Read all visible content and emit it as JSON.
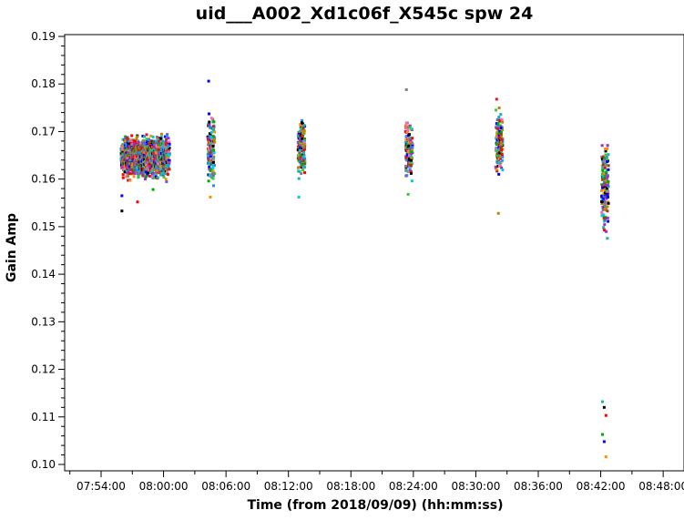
{
  "chart_data": {
    "type": "scatter",
    "title": "uid___A002_Xd1c06f_X545c spw 24",
    "xlabel": "Time (from 2018/09/09) (hh:mm:ss)",
    "ylabel": "Gain Amp",
    "xlim": [
      "07:50:30",
      "08:50:00"
    ],
    "ylim": [
      0.1,
      0.19
    ],
    "x_ticks": [
      "07:54:00",
      "08:00:00",
      "08:06:00",
      "08:12:00",
      "08:18:00",
      "08:24:00",
      "08:30:00",
      "08:36:00",
      "08:42:00",
      "08:48:00"
    ],
    "y_ticks": [
      "0.10",
      "0.11",
      "0.12",
      "0.13",
      "0.14",
      "0.15",
      "0.16",
      "0.17",
      "0.18",
      "0.19"
    ],
    "grid": false,
    "legend": "none",
    "scans": [
      {
        "time_start": "07:56:00",
        "time_end": "08:00:30",
        "y_min": 0.159,
        "y_max": 0.17,
        "outliers": [
          0.1533,
          0.1552,
          0.1578,
          0.1565
        ]
      },
      {
        "time_start": "08:04:20",
        "time_end": "08:04:50",
        "y_min": 0.157,
        "y_max": 0.176,
        "outliers": [
          0.1806,
          0.1562
        ]
      },
      {
        "time_start": "08:13:00",
        "time_end": "08:13:30",
        "y_min": 0.158,
        "y_max": 0.175,
        "outliers": [
          0.1562
        ]
      },
      {
        "time_start": "08:23:20",
        "time_end": "08:23:50",
        "y_min": 0.158,
        "y_max": 0.175,
        "outliers": [
          0.1788,
          0.1568
        ]
      },
      {
        "time_start": "08:32:00",
        "time_end": "08:32:30",
        "y_min": 0.159,
        "y_max": 0.176,
        "outliers": [
          0.1768,
          0.1528
        ]
      },
      {
        "time_start": "08:42:10",
        "time_end": "08:42:40",
        "y_min": 0.145,
        "y_max": 0.172,
        "outliers": [
          0.1132,
          0.112,
          0.1103,
          0.1063,
          0.1048,
          0.1016
        ]
      }
    ],
    "colors": [
      "#000000",
      "#ff0000",
      "#00aa00",
      "#0000ff",
      "#ff8c00",
      "#9932cc",
      "#00ced1",
      "#ff69b4",
      "#8b4513",
      "#808080",
      "#32cd32",
      "#1e90ff",
      "#dc143c",
      "#b8860b",
      "#6a5acd",
      "#20b2aa"
    ]
  }
}
